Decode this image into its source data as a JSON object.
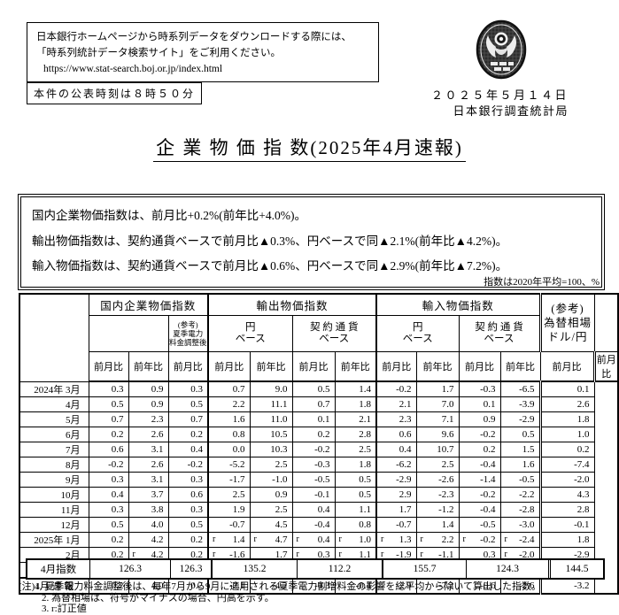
{
  "header": {
    "download_note_line1": "日本銀行ホームページから時系列データをダウンロードする際には、",
    "download_note_line2": "「時系列統計データ検索サイト」をご利用ください。",
    "download_url": "https://www.stat-search.boj.or.jp/index.html",
    "release_time_note": "本件の公表時刻は８時５０分",
    "date": "２０２５年５月１４日",
    "organization": "日本銀行調査統計局",
    "seal_icon": "boj-seal"
  },
  "title": "企 業 物 価 指 数(2025年4月速報)",
  "summary": {
    "line1": "国内企業物価指数は、前月比+0.2%(前年比+4.0%)。",
    "line2": "輸出物価指数は、契約通貨ベースで前月比▲0.3%、円ベースで同▲2.1%(前年比▲4.2%)。",
    "line3": "輸入物価指数は、契約通貨ベースで前月比▲0.6%、円ベースで同▲2.9%(前年比▲7.2%)。"
  },
  "unit_note": "指数は2020年平均=100、%",
  "table": {
    "groups": [
      {
        "label": "国内企業物価指数",
        "span": 3
      },
      {
        "label": "輸出物価指数",
        "span": 4
      },
      {
        "label": "輸入物価指数",
        "span": 4
      }
    ],
    "fx_label": "(参考)\n為替相場\nドル/円",
    "subgroups": [
      {
        "label": "",
        "span": 2,
        "kind": "empty"
      },
      {
        "label": "(参考)\n夏季電力\n料金調整後",
        "span": 1,
        "kind": "small"
      },
      {
        "label": "円\nベース",
        "span": 2,
        "kind": "sub"
      },
      {
        "label": "契 約 通 貨\nベース",
        "span": 2,
        "kind": "sub"
      },
      {
        "label": "円\nベース",
        "span": 2,
        "kind": "sub"
      },
      {
        "label": "契 約 通 貨\nベース",
        "span": 2,
        "kind": "sub"
      }
    ],
    "col_headers": [
      "前月比",
      "前年比",
      "前月比",
      "前月比",
      "前年比",
      "前月比",
      "前年比",
      "前月比",
      "前年比",
      "前月比",
      "前年比",
      "前月比"
    ],
    "rows": [
      {
        "label": "2024年 3月",
        "values": [
          "0.3",
          "0.9",
          "0.3",
          "0.7",
          "9.0",
          "0.5",
          "1.4",
          "-0.2",
          "1.7",
          "-0.3",
          "-6.5",
          "0.1"
        ],
        "r": []
      },
      {
        "label": "4月",
        "values": [
          "0.5",
          "0.9",
          "0.5",
          "2.2",
          "11.1",
          "0.7",
          "1.8",
          "2.1",
          "7.0",
          "0.1",
          "-3.9",
          "2.6"
        ],
        "r": []
      },
      {
        "label": "5月",
        "values": [
          "0.7",
          "2.3",
          "0.7",
          "1.6",
          "11.0",
          "0.1",
          "2.1",
          "2.3",
          "7.1",
          "0.9",
          "-2.9",
          "1.8"
        ],
        "r": []
      },
      {
        "label": "6月",
        "values": [
          "0.2",
          "2.6",
          "0.2",
          "0.8",
          "10.5",
          "0.2",
          "2.8",
          "0.6",
          "9.6",
          "-0.2",
          "0.5",
          "1.0"
        ],
        "r": []
      },
      {
        "label": "7月",
        "values": [
          "0.6",
          "3.1",
          "0.4",
          "0.0",
          "10.3",
          "-0.2",
          "2.5",
          "0.4",
          "10.7",
          "0.2",
          "1.5",
          "0.2"
        ],
        "r": []
      },
      {
        "label": "8月",
        "values": [
          "-0.2",
          "2.6",
          "-0.2",
          "-5.2",
          "2.5",
          "-0.3",
          "1.8",
          "-6.2",
          "2.5",
          "-0.4",
          "1.6",
          "-7.4"
        ],
        "r": []
      },
      {
        "label": "9月",
        "values": [
          "0.3",
          "3.1",
          "0.3",
          "-1.7",
          "-1.0",
          "-0.5",
          "0.5",
          "-2.9",
          "-2.6",
          "-1.4",
          "-0.5",
          "-2.0"
        ],
        "r": []
      },
      {
        "label": "10月",
        "values": [
          "0.4",
          "3.7",
          "0.6",
          "2.5",
          "0.9",
          "-0.1",
          "0.5",
          "2.9",
          "-2.3",
          "-0.2",
          "-2.2",
          "4.3"
        ],
        "r": []
      },
      {
        "label": "11月",
        "values": [
          "0.3",
          "3.8",
          "0.3",
          "1.9",
          "2.5",
          "0.4",
          "1.1",
          "1.7",
          "-1.2",
          "-0.4",
          "-2.8",
          "2.8"
        ],
        "r": []
      },
      {
        "label": "12月",
        "values": [
          "0.5",
          "4.0",
          "0.5",
          "-0.7",
          "4.5",
          "-0.4",
          "0.8",
          "-0.7",
          "1.4",
          "-0.5",
          "-3.0",
          "-0.1"
        ],
        "r": []
      },
      {
        "label": "2025年 1月",
        "values": [
          "0.2",
          "4.2",
          "0.2",
          "1.4",
          "4.7",
          "0.4",
          "1.0",
          "1.3",
          "2.2",
          "-0.2",
          "-2.4",
          "1.8"
        ],
        "r": [
          3,
          4,
          5,
          6,
          7,
          8,
          9,
          10
        ]
      },
      {
        "label": "2月",
        "values": [
          "0.2",
          "4.2",
          "0.2",
          "-1.6",
          "1.7",
          "0.3",
          "1.1",
          "-1.9",
          "-1.1",
          "0.3",
          "-2.0",
          "-2.9"
        ],
        "r": [
          1,
          3,
          5,
          6,
          7,
          8,
          10
        ]
      },
      {
        "label": "3月",
        "values": [
          "0.4",
          "4.3",
          "0.4",
          "-0.9",
          "0.1",
          "0.0",
          "0.5",
          "-1.5",
          "-2.4",
          "-0.2",
          "-2.0",
          "-1.8"
        ],
        "r": [
          1,
          3,
          4,
          5,
          6,
          7,
          8,
          10
        ]
      },
      {
        "label": "4月 速 報",
        "values": [
          "0.2",
          "4.0",
          "0.2",
          "-2.1",
          "-4.2",
          "-0.3",
          "-0.4",
          "-2.9",
          "-7.2",
          "-0.6",
          "-2.6",
          "-3.2"
        ],
        "r": [],
        "flash": true,
        "center": true
      }
    ],
    "index_row": {
      "label": "4月指数",
      "values": [
        "126.3",
        "126.3",
        "135.2",
        "112.2",
        "155.7",
        "124.3",
        "144.5"
      ]
    }
  },
  "notes": {
    "line1": "(注)1. 夏季電力料金調整後は、毎年7月から9月に適用される夏季電力割増料金の影響を総平均から除いて算出した指数。",
    "line2": "2. 為替相場は、符号がマイナスの場合、円高を示す。",
    "line3": "3. r:訂正値"
  }
}
